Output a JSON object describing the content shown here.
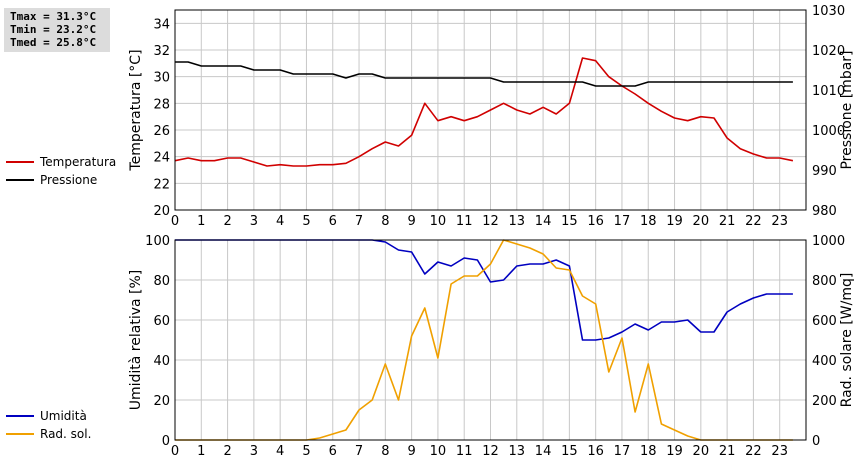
{
  "stats": {
    "tmax": "Tmax = 31.3°C",
    "tmin": "Tmin = 23.2°C",
    "tmed": "Tmed = 25.8°C"
  },
  "legend_top": [
    {
      "label": "Temperatura",
      "color": "#d00000"
    },
    {
      "label": "Pressione",
      "color": "#000000"
    }
  ],
  "legend_bottom": [
    {
      "label": "Umidità",
      "color": "#0000c0"
    },
    {
      "label": "Rad. sol.",
      "color": "#f0a000"
    }
  ],
  "chart_data": [
    {
      "type": "line",
      "ylabel": "Temperatura [°C]",
      "y2label": "Pressione [mbar]",
      "xlim": [
        0,
        24
      ],
      "ylim": [
        20,
        35
      ],
      "y2lim": [
        980,
        1030
      ],
      "xticks": [
        0,
        1,
        2,
        3,
        4,
        5,
        6,
        7,
        8,
        9,
        10,
        11,
        12,
        13,
        14,
        15,
        16,
        17,
        18,
        19,
        20,
        21,
        22,
        23
      ],
      "yticks": [
        20,
        22,
        24,
        26,
        28,
        30,
        32,
        34
      ],
      "y2ticks": [
        980,
        990,
        1000,
        1010,
        1020,
        1030
      ],
      "grid": true,
      "series": [
        {
          "name": "Temperatura",
          "axis": "left",
          "color": "#d00000",
          "x": [
            0,
            0.5,
            1,
            1.5,
            2,
            2.5,
            3,
            3.5,
            4,
            4.5,
            5,
            5.5,
            6,
            6.5,
            7,
            7.5,
            8,
            8.5,
            9,
            9.5,
            10,
            10.5,
            11,
            11.5,
            12,
            12.5,
            13,
            13.5,
            14,
            14.5,
            15,
            15.5,
            16,
            16.5,
            17,
            17.5,
            18,
            18.5,
            19,
            19.5,
            20,
            20.5,
            21,
            21.5,
            22,
            22.5,
            23,
            23.5
          ],
          "y": [
            23.7,
            23.9,
            23.7,
            23.7,
            23.9,
            23.9,
            23.6,
            23.3,
            23.4,
            23.3,
            23.3,
            23.4,
            23.4,
            23.5,
            24.0,
            24.6,
            25.1,
            24.8,
            25.6,
            28.0,
            26.7,
            27.0,
            26.7,
            27.0,
            27.5,
            28.0,
            27.5,
            27.2,
            27.7,
            27.2,
            28.0,
            31.4,
            31.2,
            30.0,
            29.3,
            28.7,
            28.0,
            27.4,
            26.9,
            26.7,
            27.0,
            26.9,
            25.4,
            24.6,
            24.2,
            23.9,
            23.9,
            23.7
          ]
        },
        {
          "name": "Pressione",
          "axis": "right",
          "color": "#000000",
          "x": [
            0,
            0.5,
            1,
            1.5,
            2,
            2.5,
            3,
            3.5,
            4,
            4.5,
            5,
            5.5,
            6,
            6.5,
            7,
            7.5,
            8,
            8.5,
            9,
            9.5,
            10,
            10.5,
            11,
            11.5,
            12,
            12.5,
            13,
            13.5,
            14,
            14.5,
            15,
            15.5,
            16,
            16.5,
            17,
            17.5,
            18,
            18.5,
            19,
            19.5,
            20,
            20.5,
            21,
            21.5,
            22,
            22.5,
            23,
            23.5
          ],
          "y": [
            1017,
            1017,
            1016,
            1016,
            1016,
            1016,
            1015,
            1015,
            1015,
            1014,
            1014,
            1014,
            1014,
            1013,
            1014,
            1014,
            1013,
            1013,
            1013,
            1013,
            1013,
            1013,
            1013,
            1013,
            1013,
            1012,
            1012,
            1012,
            1012,
            1012,
            1012,
            1012,
            1011,
            1011,
            1011,
            1011,
            1012,
            1012,
            1012,
            1012,
            1012,
            1012,
            1012,
            1012,
            1012,
            1012,
            1012,
            1012
          ]
        }
      ]
    },
    {
      "type": "line",
      "ylabel": "Umidità relativa [%]",
      "y2label": "Rad. solare [W/mq]",
      "xlim": [
        0,
        24
      ],
      "ylim": [
        0,
        100
      ],
      "y2lim": [
        0,
        1000
      ],
      "xticks": [
        0,
        1,
        2,
        3,
        4,
        5,
        6,
        7,
        8,
        9,
        10,
        11,
        12,
        13,
        14,
        15,
        16,
        17,
        18,
        19,
        20,
        21,
        22,
        23
      ],
      "yticks": [
        0,
        20,
        40,
        60,
        80,
        100
      ],
      "y2ticks": [
        0,
        200,
        400,
        600,
        800,
        1000
      ],
      "grid": true,
      "series": [
        {
          "name": "Umidità",
          "axis": "left",
          "color": "#0000c0",
          "x": [
            0,
            0.5,
            1,
            1.5,
            2,
            2.5,
            3,
            3.5,
            4,
            4.5,
            5,
            5.5,
            6,
            6.5,
            7,
            7.5,
            8,
            8.5,
            9,
            9.5,
            10,
            10.5,
            11,
            11.5,
            12,
            12.5,
            13,
            13.5,
            14,
            14.5,
            15,
            15.5,
            16,
            16.5,
            17,
            17.5,
            18,
            18.5,
            19,
            19.5,
            20,
            20.5,
            21,
            21.5,
            22,
            22.5,
            23,
            23.5
          ],
          "y": [
            100,
            100,
            100,
            100,
            100,
            100,
            100,
            100,
            100,
            100,
            100,
            100,
            100,
            100,
            100,
            100,
            99,
            95,
            94,
            83,
            89,
            87,
            91,
            90,
            79,
            80,
            87,
            88,
            88,
            90,
            87,
            50,
            50,
            51,
            54,
            58,
            55,
            59,
            59,
            60,
            54,
            54,
            64,
            68,
            71,
            73,
            73,
            73
          ]
        },
        {
          "name": "Rad. sol.",
          "axis": "right",
          "color": "#f0a000",
          "x": [
            0,
            0.5,
            1,
            1.5,
            2,
            2.5,
            3,
            3.5,
            4,
            4.5,
            5,
            5.5,
            6,
            6.5,
            7,
            7.5,
            8,
            8.5,
            9,
            9.5,
            10,
            10.5,
            11,
            11.5,
            12,
            12.5,
            13,
            13.5,
            14,
            14.5,
            15,
            15.5,
            16,
            16.5,
            17,
            17.5,
            18,
            18.5,
            19,
            19.5,
            20,
            20.5,
            21,
            21.5,
            22,
            22.5,
            23,
            23.5
          ],
          "y": [
            0,
            0,
            0,
            0,
            0,
            0,
            0,
            0,
            0,
            0,
            0,
            10,
            30,
            50,
            150,
            200,
            380,
            200,
            520,
            660,
            410,
            780,
            820,
            820,
            880,
            1000,
            980,
            960,
            930,
            860,
            850,
            720,
            680,
            340,
            510,
            140,
            380,
            80,
            50,
            20,
            0,
            0,
            0,
            0,
            0,
            0,
            0,
            0
          ]
        }
      ]
    }
  ]
}
